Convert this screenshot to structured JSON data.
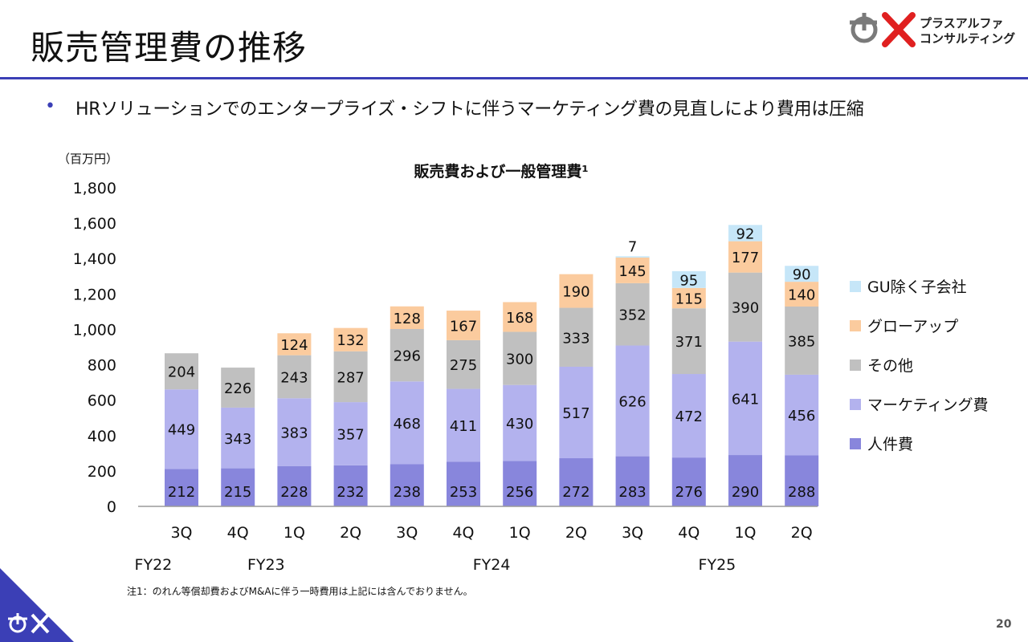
{
  "page": {
    "title": "販売管理費の推移",
    "bullet": "HRソリューションでのエンタープライズ・シフトに伴うマーケティング費の見直しにより費用は圧縮",
    "footnote": "注1：のれん等償却費およびM&Aに伴う一時費用は上記には含んでおりません。",
    "page_number": "20",
    "logo": {
      "line1": "プラスアルファ",
      "line2": "コンサルティング"
    }
  },
  "chart_data": {
    "type": "bar",
    "stacked": true,
    "title": "販売費および一般管理費¹",
    "unit_label": "（百万円）",
    "ylim": [
      0,
      1800
    ],
    "yticks": [
      0,
      200,
      400,
      600,
      800,
      1000,
      1200,
      1400,
      1600,
      1800
    ],
    "ytick_labels": [
      "0",
      "200",
      "400",
      "600",
      "800",
      "1,000",
      "1,200",
      "1,400",
      "1,600",
      "1,800"
    ],
    "categories": [
      "3Q",
      "4Q",
      "1Q",
      "2Q",
      "3Q",
      "4Q",
      "1Q",
      "2Q",
      "3Q",
      "4Q",
      "1Q",
      "2Q"
    ],
    "fiscal_years": [
      {
        "label": "FY22",
        "first_index": 0
      },
      {
        "label": "FY23",
        "first_index": 2
      },
      {
        "label": "FY24",
        "first_index": 6
      },
      {
        "label": "FY25",
        "first_index": 10
      }
    ],
    "series": [
      {
        "name": "人件費",
        "color": "#8886dc",
        "values": [
          212,
          215,
          228,
          232,
          238,
          253,
          256,
          272,
          283,
          276,
          290,
          288
        ]
      },
      {
        "name": "マーケティング費",
        "color": "#b3b2ee",
        "values": [
          449,
          343,
          383,
          357,
          468,
          411,
          430,
          517,
          626,
          472,
          641,
          456
        ]
      },
      {
        "name": "その他",
        "color": "#c0c0c0",
        "values": [
          204,
          226,
          243,
          287,
          296,
          275,
          300,
          333,
          352,
          371,
          390,
          385
        ]
      },
      {
        "name": "グローアップ",
        "color": "#fbcb9e",
        "values": [
          null,
          null,
          124,
          132,
          128,
          167,
          168,
          190,
          145,
          115,
          177,
          140
        ]
      },
      {
        "name": "GU除く子会社",
        "color": "#c6e6f8",
        "values": [
          null,
          null,
          null,
          null,
          null,
          null,
          null,
          null,
          7,
          95,
          92,
          90
        ]
      }
    ],
    "legend_position": "right",
    "grid": false
  }
}
